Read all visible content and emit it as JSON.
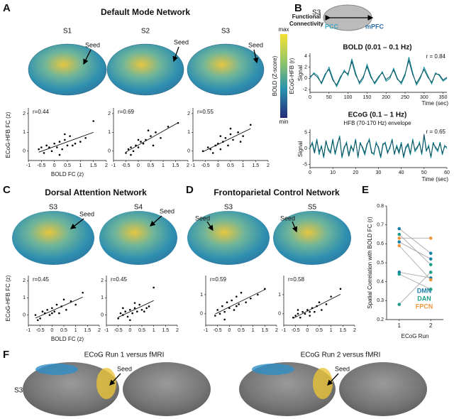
{
  "panel_labels": [
    "A",
    "B",
    "C",
    "D",
    "E",
    "F"
  ],
  "panel_a": {
    "title": "Default Mode Network",
    "subjects": [
      "S1",
      "S2",
      "S3"
    ],
    "seed": "Seed",
    "colorbar": {
      "title_lines": [
        "Functional",
        "Connectivity"
      ],
      "max": "max",
      "min": "min",
      "left_label": "BOLD (Z-score)",
      "right_label": "ECoG-HFB (r)"
    },
    "xlabel": "BOLD FC (z)",
    "ylabel": "ECoG-HFB FC (z)",
    "scatters": [
      {
        "r_label": "r=0.44",
        "xlim": [
          -1,
          2
        ],
        "ylim": [
          -0.5,
          2.3
        ],
        "xticks": [
          -1,
          -0.5,
          0,
          0.5,
          1,
          1.5,
          2
        ],
        "yticks": [
          0,
          1,
          2
        ],
        "x": [
          -0.6,
          -0.4,
          -0.3,
          -0.2,
          -0.1,
          0,
          0.1,
          0.2,
          0.3,
          0.4,
          0.5,
          0.6,
          0.8,
          1.0,
          1.2,
          1.5,
          -0.5,
          0.2,
          0.4,
          0.7
        ],
        "y": [
          0.1,
          -0.1,
          0.3,
          0.2,
          0,
          0.4,
          0.2,
          0.5,
          0.1,
          0.6,
          0.3,
          0.8,
          0.4,
          0.5,
          0.7,
          1.6,
          0.2,
          -0.2,
          0.9,
          0.3
        ]
      },
      {
        "r_label": "r=0.69",
        "xlim": [
          -1,
          2
        ],
        "ylim": [
          -0.5,
          2.3
        ],
        "xticks": [
          -1,
          -0.5,
          0,
          0.5,
          1,
          1.5,
          2
        ],
        "yticks": [
          0,
          1,
          2
        ],
        "x": [
          -0.5,
          -0.4,
          -0.3,
          -0.2,
          -0.1,
          0,
          0.1,
          0.2,
          0.3,
          0.5,
          0.7,
          0.9,
          1.2,
          1.6,
          -0.3,
          0.0,
          0.4,
          0.6
        ],
        "y": [
          -0.1,
          0.1,
          0.2,
          0,
          0.3,
          0.2,
          0.5,
          0.4,
          0.6,
          0.8,
          1.0,
          0.7,
          1.3,
          1.5,
          -0.2,
          0.6,
          1.1,
          0.3
        ]
      },
      {
        "r_label": "r=0.55",
        "xlim": [
          -1,
          2
        ],
        "ylim": [
          -0.5,
          2.3
        ],
        "xticks": [
          -1,
          -0.5,
          0,
          0.5,
          1,
          1.5,
          2
        ],
        "yticks": [
          0,
          1,
          2
        ],
        "x": [
          -0.6,
          -0.4,
          -0.2,
          -0.1,
          0,
          0.1,
          0.2,
          0.3,
          0.4,
          0.5,
          0.6,
          0.8,
          1.0,
          1.3,
          -0.3,
          0.1,
          0.5,
          0.9
        ],
        "y": [
          0,
          0.2,
          -0.1,
          0.3,
          0.4,
          0.1,
          0.5,
          0.7,
          0.3,
          0.9,
          0.6,
          1.0,
          0.8,
          1.4,
          0.1,
          0.8,
          1.2,
          0.5
        ]
      }
    ]
  },
  "panel_b": {
    "subject": "S3",
    "region_left": "PCC",
    "region_right": "mPFC",
    "ylabel": "Signal",
    "xlabel": "Time (sec)",
    "bold": {
      "title": "BOLD (0.01 – 0.1 Hz)",
      "r_label": "r = 0.84",
      "xlim": [
        0,
        360
      ],
      "ylim": [
        -2.5,
        4.5
      ],
      "xticks": [
        0,
        50,
        100,
        150,
        200,
        250,
        300,
        350
      ],
      "yticks": [
        -2,
        0,
        2,
        4
      ],
      "x_step": 10,
      "series": [
        {
          "color": "#0b8a99",
          "values": [
            0,
            1,
            0.5,
            -1,
            0.5,
            2,
            0,
            -1.5,
            0,
            1.5,
            0.5,
            3.5,
            1,
            -1,
            0,
            2.5,
            0.5,
            -1,
            0,
            1.2,
            -0.5,
            0,
            1.8,
            0,
            -1,
            0.5,
            3.8,
            1,
            -1.2,
            0,
            2,
            0.5,
            -1,
            1,
            0.5,
            -0.5,
            0
          ]
        },
        {
          "color": "#0a4f5c",
          "values": [
            0.3,
            0.8,
            0.2,
            -0.8,
            0.8,
            1.6,
            -0.3,
            -1.2,
            0.3,
            1.2,
            0.8,
            3,
            0.6,
            -0.7,
            0.3,
            2.1,
            0.2,
            -0.8,
            0.3,
            1,
            -0.2,
            0.3,
            1.5,
            -0.2,
            -0.7,
            0.8,
            3.2,
            0.7,
            -0.9,
            0.3,
            1.6,
            0.2,
            -0.7,
            0.8,
            0.7,
            -0.3,
            0.2
          ]
        }
      ]
    },
    "ecog": {
      "title": "ECoG (0.1 – 1 Hz)",
      "subtitle": "HFB (70-170 Hz) envelope",
      "r_label": "r = 0.65",
      "xlim": [
        0,
        60
      ],
      "ylim": [
        -6,
        6
      ],
      "xticks": [
        0,
        10,
        20,
        30,
        40,
        50,
        60
      ],
      "yticks": [
        -5,
        0,
        5
      ],
      "x_step": 1,
      "series": [
        {
          "color": "#0b8a99",
          "values": [
            0,
            2,
            -1,
            3,
            -2,
            1,
            -3,
            2,
            0,
            -1,
            3,
            -2,
            1,
            4,
            -3,
            0,
            2,
            -2,
            1,
            -1,
            3,
            -3,
            2,
            0,
            -2,
            1,
            3,
            -1,
            -2,
            2,
            0,
            -3,
            1,
            2,
            -1,
            0,
            3,
            -2,
            1,
            -1,
            2,
            -3,
            0,
            1,
            -2,
            3,
            -1,
            0,
            2,
            -2,
            4,
            -1,
            1,
            -3,
            2,
            0,
            -1,
            2,
            -2,
            1,
            0
          ]
        },
        {
          "color": "#0a4f5c",
          "values": [
            0.5,
            1.5,
            -1.5,
            2.5,
            -1,
            0.5,
            -2.5,
            2.5,
            -0.5,
            -1.5,
            2.5,
            -1.5,
            1.5,
            3.5,
            -2.5,
            0.5,
            1.5,
            -2.5,
            0.5,
            -0.5,
            2.5,
            -2.5,
            1.5,
            0.5,
            -1.5,
            1.5,
            2.5,
            -1.5,
            -1.5,
            1.5,
            0.5,
            -2.5,
            1.5,
            1.5,
            -1.5,
            0.5,
            2.5,
            -1.5,
            0.5,
            -1.5,
            1.5,
            -2.5,
            0.5,
            1.5,
            -1.5,
            2.5,
            -0.5,
            0.5,
            1.5,
            -1.5,
            4.5,
            -0.5,
            0.5,
            -2.5,
            1.5,
            0.5,
            -0.5,
            1.5,
            -1.5,
            0.5,
            0.5
          ]
        }
      ]
    }
  },
  "panel_c": {
    "title": "Dorsal Attention Network",
    "subjects": [
      "S3",
      "S4"
    ],
    "seed": "Seed",
    "xlabel": "BOLD FC (z)",
    "ylabel": "ECoG-HFB FC (z)",
    "scatters": [
      {
        "r_label": "r=0.45",
        "xlim": [
          -1,
          2
        ],
        "ylim": [
          -0.6,
          2.3
        ],
        "xticks": [
          -1,
          -0.5,
          0,
          0.5,
          1,
          1.5,
          2
        ],
        "yticks": [
          0,
          1,
          2
        ],
        "x": [
          -0.7,
          -0.5,
          -0.4,
          -0.3,
          -0.2,
          -0.1,
          0,
          0.1,
          0.2,
          0.3,
          0.4,
          0.6,
          0.8,
          1.0,
          1.3,
          -0.6,
          0.0,
          0.5
        ],
        "y": [
          0,
          -0.2,
          0.2,
          0.1,
          0.3,
          0,
          0.4,
          0.2,
          0.6,
          0.1,
          0.5,
          0.3,
          0.8,
          0.6,
          1.3,
          -0.3,
          0.1,
          0.9
        ]
      },
      {
        "r_label": "r=0.45",
        "xlim": [
          -1,
          2
        ],
        "ylim": [
          -0.6,
          2.3
        ],
        "xticks": [
          -1,
          -0.5,
          0,
          0.5,
          1,
          1.5,
          2
        ],
        "yticks": [
          0,
          1,
          2
        ],
        "x": [
          -0.5,
          -0.4,
          -0.3,
          -0.2,
          -0.1,
          0,
          0.1,
          0.2,
          0.3,
          0.4,
          0.5,
          0.6,
          0.8,
          1.0,
          -0.3,
          0.0,
          0.2,
          0.7
        ],
        "y": [
          -0.2,
          0.1,
          0,
          0.2,
          -0.1,
          0.3,
          0.1,
          0.4,
          0.2,
          0.6,
          0.3,
          0.2,
          0.5,
          1.6,
          0.4,
          -0.3,
          0.7,
          0.4
        ]
      }
    ]
  },
  "panel_d": {
    "title": "Frontoparietal Control Network",
    "subjects": [
      "S3",
      "S5"
    ],
    "seed": "Seed",
    "scatters": [
      {
        "r_label": "r=0.59",
        "xlim": [
          -1,
          2
        ],
        "ylim": [
          -0.6,
          2.0
        ],
        "xticks": [
          -1,
          -0.5,
          0,
          0.5,
          1,
          1.5,
          2
        ],
        "yticks": [
          0,
          1
        ],
        "x": [
          -0.6,
          -0.5,
          -0.4,
          -0.3,
          -0.2,
          -0.1,
          0,
          0.1,
          0.2,
          0.3,
          0.4,
          0.5,
          0.7,
          0.9,
          1.2,
          1.5,
          -0.2,
          0.3
        ],
        "y": [
          -0.1,
          0.2,
          0,
          0.4,
          0.1,
          0.6,
          0.3,
          0.7,
          0.2,
          0.9,
          0.5,
          1.1,
          0.6,
          0.8,
          1.0,
          1.3,
          -0.3,
          0.4
        ]
      },
      {
        "r_label": "r=0.58",
        "xlim": [
          -1,
          2
        ],
        "ylim": [
          -0.6,
          2.0
        ],
        "xticks": [
          -1,
          -0.5,
          0,
          0.5,
          1,
          1.5,
          2
        ],
        "yticks": [
          0,
          1
        ],
        "x": [
          -0.6,
          -0.5,
          -0.4,
          -0.3,
          -0.2,
          -0.1,
          0,
          0.1,
          0.2,
          0.3,
          0.4,
          0.6,
          0.8,
          1.0,
          1.4,
          -0.4,
          0.1,
          0.5
        ],
        "y": [
          -0.2,
          -0.1,
          0,
          -0.2,
          0.1,
          0,
          0.2,
          -0.1,
          0.3,
          0.1,
          0.4,
          0.2,
          0.5,
          0.9,
          1.3,
          0.2,
          0.1,
          0.6
        ]
      }
    ]
  },
  "panel_e": {
    "ylabel": "Spatial Correlation with BOLD FC (r)",
    "xlabel": "ECoG Run",
    "xticks": [
      1,
      2
    ],
    "xlim": [
      0.6,
      2.4
    ],
    "ylim": [
      0.2,
      0.8
    ],
    "yticks": [
      0.2,
      0.3,
      0.4,
      0.5,
      0.6,
      0.7,
      0.8
    ],
    "line_color": "#aaaaaa",
    "series": [
      {
        "name": "DMN",
        "color": "#1d7fa8",
        "pairs": [
          [
            0.68,
            0.55
          ],
          [
            0.61,
            0.52
          ],
          [
            0.45,
            0.42
          ]
        ]
      },
      {
        "name": "DAN",
        "color": "#1f9e8a",
        "pairs": [
          [
            0.65,
            0.49
          ],
          [
            0.44,
            0.36
          ],
          [
            0.28,
            0.45
          ]
        ]
      },
      {
        "name": "FPCN",
        "color": "#f0953a",
        "pairs": [
          [
            0.63,
            0.63
          ],
          [
            0.59,
            0.41
          ]
        ]
      }
    ]
  },
  "panel_f": {
    "subject": "S3",
    "left_title": "ECoG Run 1 versus fMRI",
    "right_title": "ECoG Run 2 versus fMRI",
    "seed": "Seed"
  }
}
